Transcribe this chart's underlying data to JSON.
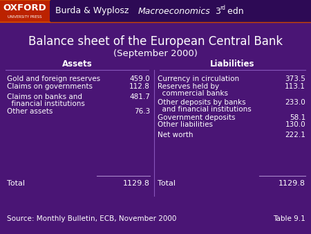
{
  "title_line1": "Balance sheet of the European Central Bank",
  "title_line2": "(September 2000)",
  "oxford_text": "OXFORD",
  "oxford_sub": "UNIVERSITY PRESS",
  "bg_color": "#4a1575",
  "header_bg": "#2d0a55",
  "oxford_bg": "#bb2200",
  "assets_header": "Assets",
  "liabilities_header": "Liabilities",
  "total_assets_label": "Total",
  "total_assets_value": "1129.8",
  "total_liabilities_label": "Total",
  "total_liabilities_value": "1129.8",
  "source_text": "Source: Monthly Bulletin, ECB, November 2000",
  "table_ref": "Table 9.1",
  "header_line_color": "#8855bb",
  "divider_line_color": "#8855bb",
  "total_line_color": "#aa88cc",
  "orange_line": "#cc4400"
}
